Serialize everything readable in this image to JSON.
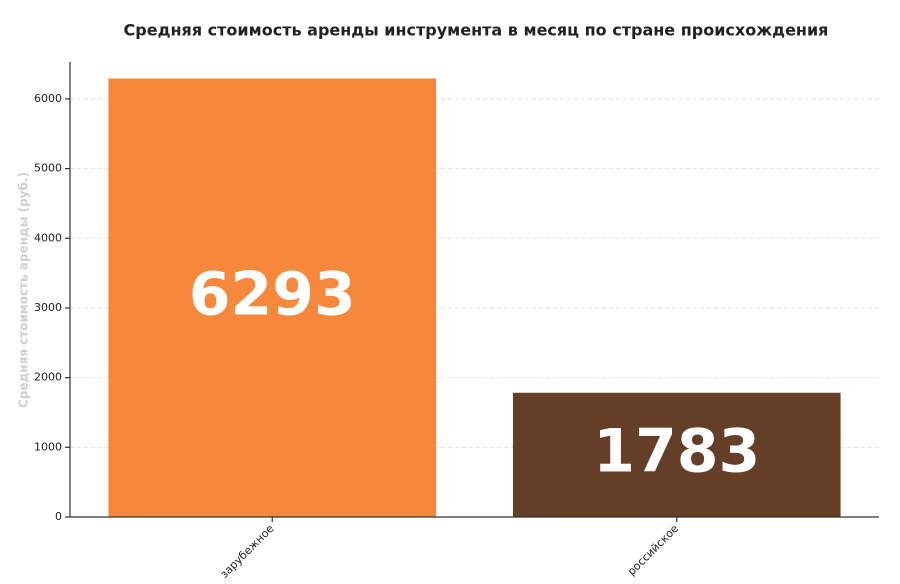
{
  "chart_data": {
    "type": "bar",
    "title": "Средняя стоимость аренды инструмента в месяц по стране происхождения",
    "y_label": "Средняя стоимость аренды (руб.)",
    "categories": [
      "зарубежное",
      "российское"
    ],
    "values": [
      6293,
      1783
    ],
    "colors": [
      "#f5883a",
      "#643e26"
    ],
    "ylim": [
      0,
      6530
    ],
    "yticks": [
      0,
      1000,
      2000,
      3000,
      4000,
      5000,
      6000
    ],
    "grid": true
  }
}
